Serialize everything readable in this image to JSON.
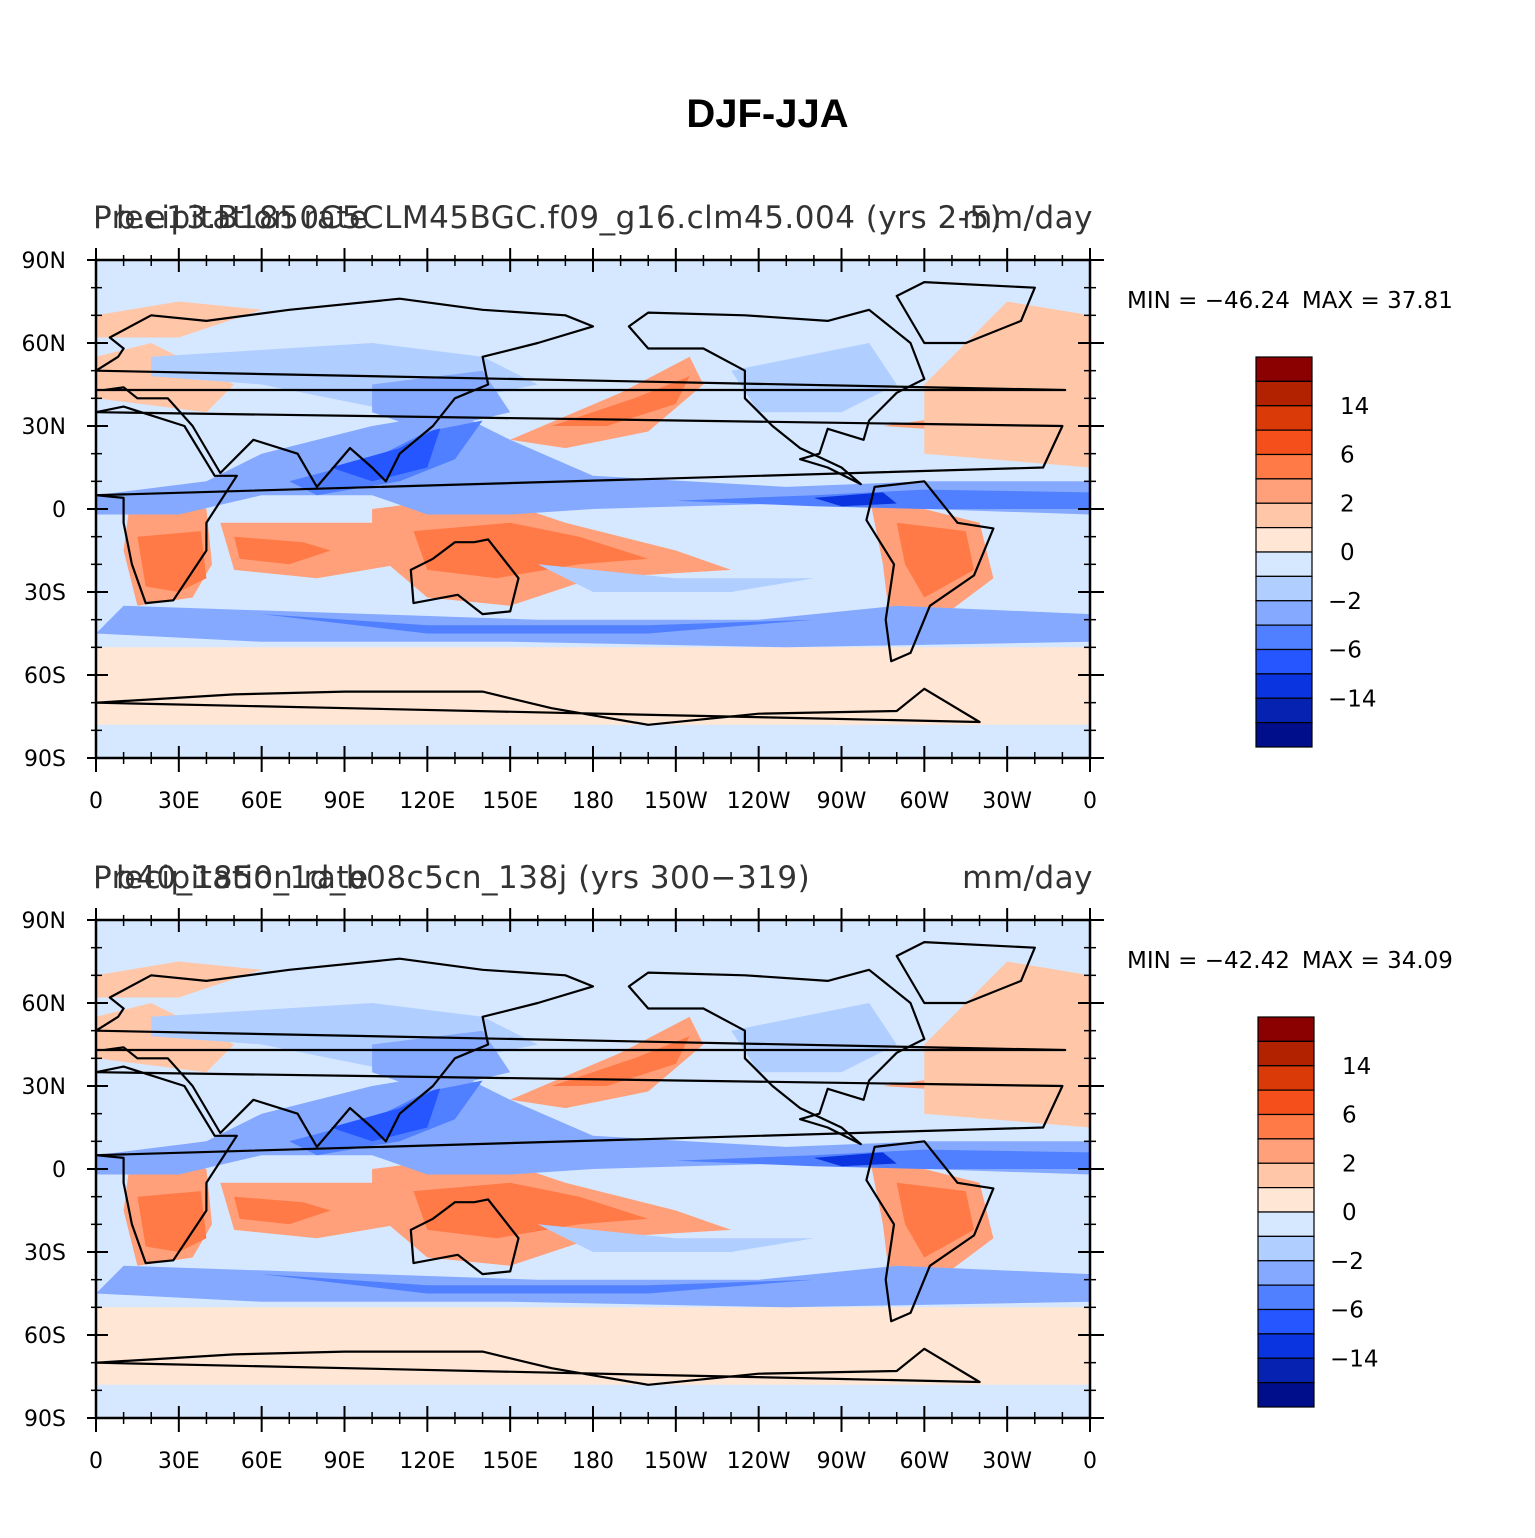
{
  "title": "DJF-JJA",
  "panels": [
    {
      "case_name": "b.e13.B1850C5CLM45BGC.f09_g16.clm45.004 (yrs 2-5)",
      "variable": "Precipitation rate",
      "units": "mm/day",
      "min_label": "MIN = −46.24",
      "max_label": "MAX =   37.81"
    },
    {
      "case_name": "b40_1850_1d_b08c5cn_138j (yrs 300−319)",
      "variable": "Precipitation rate",
      "units": "mm/day",
      "min_label": "MIN = −42.42",
      "max_label": "MAX =   34.09"
    }
  ],
  "lat_labels": [
    "90N",
    "60N",
    "30N",
    "0",
    "30S",
    "60S",
    "90S"
  ],
  "lon_labels": [
    "0",
    "30E",
    "60E",
    "90E",
    "120E",
    "150E",
    "180",
    "150W",
    "120W",
    "90W",
    "60W",
    "30W",
    "0"
  ],
  "colorbar": {
    "labels": [
      "14",
      "6",
      "2",
      "0",
      "−2",
      "−6",
      "−14"
    ],
    "colors": [
      "#8b0000",
      "#b22100",
      "#d93a08",
      "#f5501c",
      "#ff7a46",
      "#ffa07a",
      "#ffc6a8",
      "#ffe6d5",
      "#d6e8ff",
      "#b0ceff",
      "#85a9ff",
      "#5080ff",
      "#2556ff",
      "#0a34e0",
      "#0522b0",
      "#000e8b"
    ]
  }
}
